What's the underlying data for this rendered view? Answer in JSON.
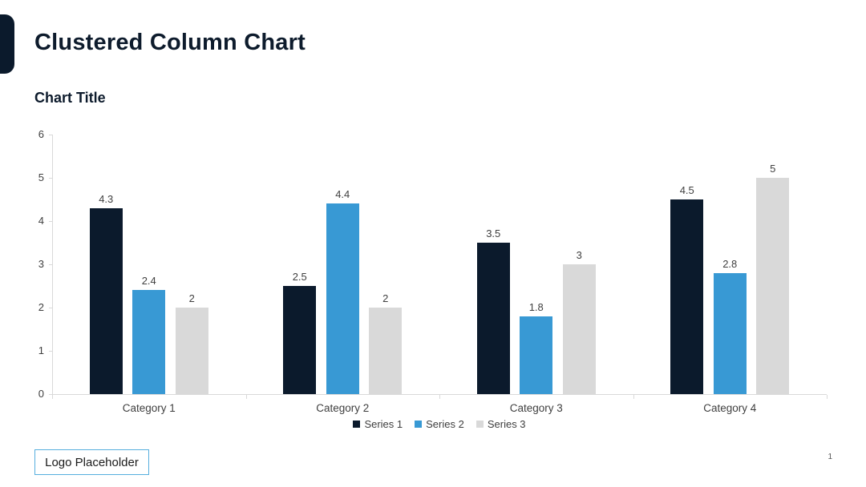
{
  "header": {
    "title": "Clustered Column Chart"
  },
  "accent_color": "#0b1a2c",
  "chart_data": {
    "type": "bar",
    "title": "Chart Title",
    "categories": [
      "Category 1",
      "Category 2",
      "Category 3",
      "Category 4"
    ],
    "series": [
      {
        "name": "Series 1",
        "color": "#0b1a2c",
        "values": [
          4.3,
          2.5,
          3.5,
          4.5
        ]
      },
      {
        "name": "Series 2",
        "color": "#3899d4",
        "values": [
          2.4,
          4.4,
          1.8,
          2.8
        ]
      },
      {
        "name": "Series 3",
        "color": "#d9d9d9",
        "values": [
          2,
          2,
          3,
          5
        ]
      }
    ],
    "data_labels": [
      [
        "4.3",
        "2.5",
        "3.5",
        "4.5"
      ],
      [
        "2.4",
        "4.4",
        "1.8",
        "2.8"
      ],
      [
        "2",
        "2",
        "3",
        "5"
      ]
    ],
    "ylim": [
      0,
      6
    ],
    "yticks": [
      "0",
      "1",
      "2",
      "3",
      "4",
      "5",
      "6"
    ],
    "xlabel": "",
    "ylabel": "",
    "grid": false,
    "axis_color": "#d9d9d9",
    "label_color": "#3f3f3f",
    "legend_position": "bottom"
  },
  "footer": {
    "logo_label": "Logo Placeholder",
    "page_number": "1"
  }
}
